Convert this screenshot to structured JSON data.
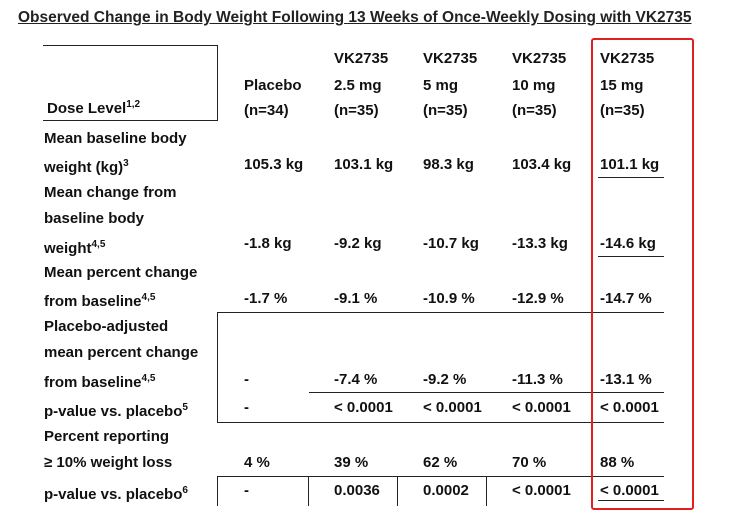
{
  "title": "Observed Change in Body Weight Following 13 Weeks of Once-Weekly Dosing with VK2735",
  "header": {
    "dose_level": "Dose Level",
    "dose_level_sup": "1,2",
    "columns": [
      {
        "l1": "",
        "l2": "Placebo",
        "l3": "(n=34)"
      },
      {
        "l1": "VK2735",
        "l2": "2.5 mg",
        "l3": "(n=35)"
      },
      {
        "l1": "VK2735",
        "l2": "5 mg",
        "l3": "(n=35)"
      },
      {
        "l1": "VK2735",
        "l2": "10 mg",
        "l3": "(n=35)"
      },
      {
        "l1": "VK2735",
        "l2": "15 mg",
        "l3": "(n=35)"
      }
    ]
  },
  "rows": [
    {
      "label_lines": [
        "Mean baseline body",
        "weight (kg)"
      ],
      "sup": "3",
      "values": [
        "105.3 kg",
        "103.1 kg",
        "98.3 kg",
        "103.4 kg",
        "101.1 kg"
      ]
    },
    {
      "label_lines": [
        "Mean change from",
        "baseline body",
        "weight"
      ],
      "sup": "4,5",
      "values": [
        "-1.8 kg",
        "-9.2 kg",
        "-10.7 kg",
        "-13.3 kg",
        "-14.6 kg"
      ]
    },
    {
      "label_lines": [
        "Mean percent change",
        "from baseline"
      ],
      "sup": "4,5",
      "values": [
        "-1.7 %",
        "-9.1 %",
        "-10.9 %",
        "-12.9 %",
        "-14.7 %"
      ]
    },
    {
      "label_lines": [
        "Placebo-adjusted",
        "mean percent change",
        "from baseline"
      ],
      "sup": "4,5",
      "values": [
        "-",
        "-7.4 %",
        "-9.2 %",
        "-11.3 %",
        "-13.1 %"
      ]
    },
    {
      "label_lines": [
        "p-value vs. placebo"
      ],
      "sup": "5",
      "values": [
        "-",
        "< 0.0001",
        "< 0.0001",
        "< 0.0001",
        "< 0.0001"
      ]
    },
    {
      "label_lines": [
        "Percent reporting",
        "≥ 10% weight loss"
      ],
      "sup": "",
      "values": [
        "4 %",
        "39 %",
        "62 %",
        "70 %",
        "88 %"
      ]
    },
    {
      "label_lines": [
        "p-value vs. placebo"
      ],
      "sup": "6",
      "values": [
        "-",
        "0.0036",
        "0.0002",
        "< 0.0001",
        "< 0.0001"
      ]
    }
  ],
  "highlight_color": "#e02020"
}
